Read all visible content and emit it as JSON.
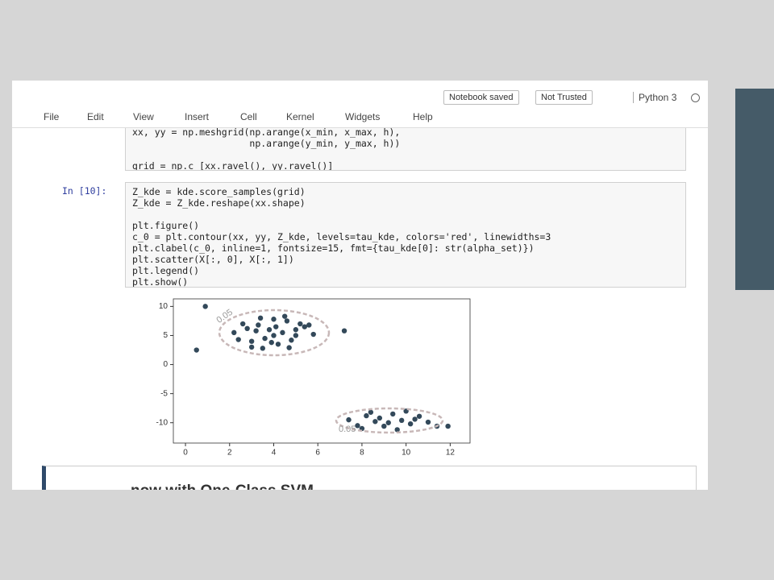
{
  "toolbar": {
    "status": "Notebook saved",
    "trust": "Not Trusted",
    "kernel": "Python 3"
  },
  "menu": [
    "File",
    "Edit",
    "View",
    "Insert",
    "Cell",
    "Kernel",
    "Widgets",
    "Help"
  ],
  "cells": [
    {
      "blocks": [
        [
          "xx, yy = np.meshgrid(np.arange(x_min, x_max, h),",
          "                     np.arange(y_min, y_max, h))"
        ],
        [
          "grid = np.c_[xx.ravel(), yy.ravel()]"
        ]
      ]
    },
    {
      "prompt": "In [10]:",
      "blocks": [
        [
          "Z_kde = kde.score_samples(grid)",
          "Z_kde = Z_kde.reshape(xx.shape)"
        ],
        [
          "plt.figure()",
          "c_0 = plt.contour(xx, yy, Z_kde, levels=tau_kde, colors='red', linewidths=3",
          "plt.clabel(c_0, inline=1, fontsize=15, fmt={tau_kde[0]: str(alpha_set)})",
          "plt.scatter(X[:, 0], X[:, 1])",
          "plt.legend()",
          "plt.show()"
        ]
      ]
    }
  ],
  "chart_data": {
    "type": "scatter",
    "contour_labels": [
      "0.05",
      "0.05"
    ],
    "series": [
      {
        "color": "#33495a",
        "x": [
          2.2,
          2.6,
          3.0,
          3.4,
          3.8,
          4.2,
          4.6,
          5.0,
          5.4,
          5.8,
          2.8,
          3.2,
          3.6,
          4.0,
          4.4,
          4.8,
          5.2,
          3.0,
          3.5,
          4.0,
          4.5,
          5.0,
          3.3,
          3.9,
          4.7,
          2.4,
          5.6,
          4.1,
          7.4,
          7.8,
          8.2,
          8.6,
          9.0,
          9.4,
          9.8,
          10.2,
          10.6,
          11.0,
          8.0,
          8.8,
          9.6,
          10.4,
          9.2,
          8.4,
          10.0,
          11.4,
          0.9,
          0.5,
          7.2,
          11.9
        ],
        "values": [
          5.5,
          7.0,
          4.0,
          8.0,
          6.0,
          3.5,
          7.5,
          5.0,
          6.5,
          5.2,
          6.2,
          5.8,
          4.5,
          7.8,
          5.5,
          4.2,
          7.0,
          3.0,
          2.8,
          5.0,
          8.3,
          6.0,
          6.8,
          3.8,
          2.9,
          4.3,
          6.8,
          6.5,
          -9.5,
          -10.5,
          -8.8,
          -9.8,
          -10.6,
          -8.5,
          -9.6,
          -10.2,
          -8.9,
          -9.9,
          -11.0,
          -9.2,
          -11.2,
          -9.4,
          -10.0,
          -8.2,
          -8.0,
          -10.6,
          10.0,
          2.5,
          5.8,
          -10.6
        ]
      }
    ],
    "xlim": [
      -0.55,
      12.9
    ],
    "ylim": [
      -13.5,
      11.3
    ],
    "xticks": [
      0,
      2,
      4,
      6,
      8,
      10,
      12
    ],
    "yticks": [
      10,
      5,
      0,
      -5,
      -10
    ]
  },
  "markdown": {
    "heading": "now with One-Class SVM"
  }
}
